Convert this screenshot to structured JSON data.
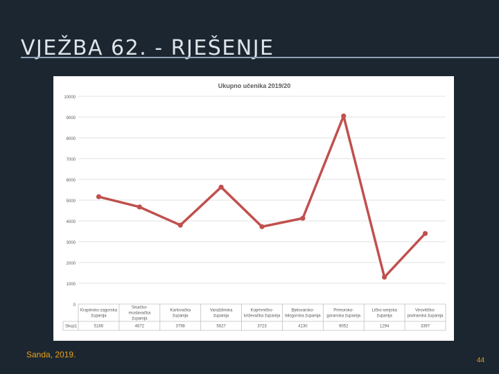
{
  "slide": {
    "title": "VJEŽBA 62. - RJEŠENJE",
    "footer_left": "Sanda, 2019.",
    "page_number": "44"
  },
  "chart_data": {
    "type": "line",
    "title": "Ukupno učenika 2019/20",
    "categories": [
      [
        "Krapinsko-zagorska",
        "županija"
      ],
      [
        "Sisačko-",
        "moslavačka",
        "županija"
      ],
      [
        "Karlovačka",
        "županija"
      ],
      [
        "Varaždinska",
        "županija"
      ],
      [
        "Koprivničko-",
        "križevačka županija"
      ],
      [
        "Bjelovarsko-",
        "bilogorska županija"
      ],
      [
        "Primorsko-",
        "goranska županija"
      ],
      [
        "Ličko-senjska",
        "županija"
      ],
      [
        "Virovitičko-",
        "podravska županija"
      ]
    ],
    "series": [
      {
        "name": "Skup1",
        "values": [
          5166,
          4672,
          3798,
          5627,
          3723,
          4130,
          9052,
          1294,
          3397
        ],
        "labels": [
          "5166",
          "4672",
          "3798",
          "5627",
          "3723",
          "4130",
          "9052",
          "1294",
          "3397"
        ],
        "color": "#c0504d"
      }
    ],
    "y_ticks": [
      0,
      1000,
      2000,
      3000,
      4000,
      5000,
      6000,
      7000,
      8000,
      9000,
      10000
    ],
    "ylim": [
      0,
      10000
    ],
    "grid": true,
    "data_table": true
  }
}
